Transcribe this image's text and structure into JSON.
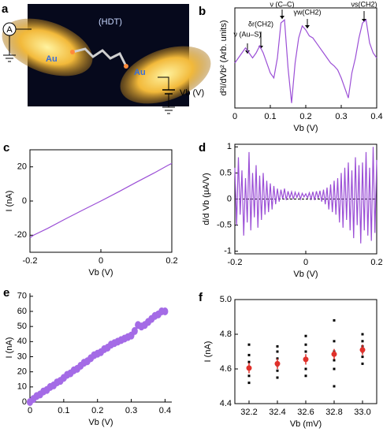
{
  "schematic": {
    "label": "a",
    "meter": "A",
    "left_electrode": "Au",
    "molecule": "(HDT)",
    "right_electrode": "Au",
    "bias": "Vb (V)"
  },
  "chart_data": [
    {
      "type": "line",
      "label": "b",
      "x_label": "Vb (V)",
      "y_label": "d²I/dVb² (Arb. units)",
      "color": "#9b4fd6",
      "xlim": [
        0,
        0.4
      ],
      "xticks": [
        0,
        0.1,
        0.2,
        0.3,
        0.4
      ],
      "ylim": [
        0,
        1
      ],
      "annotations": [
        "ν (Au–S)",
        "δr(CH2)",
        "ν (C–C)",
        "γw(CH2)",
        "νs(CH2)"
      ],
      "x": [
        0,
        0.01,
        0.02,
        0.03,
        0.04,
        0.05,
        0.06,
        0.07,
        0.08,
        0.09,
        0.1,
        0.11,
        0.12,
        0.13,
        0.14,
        0.15,
        0.16,
        0.17,
        0.18,
        0.19,
        0.2,
        0.21,
        0.22,
        0.23,
        0.24,
        0.25,
        0.26,
        0.27,
        0.28,
        0.29,
        0.3,
        0.31,
        0.32,
        0.33,
        0.34,
        0.35,
        0.36,
        0.37,
        0.38,
        0.39,
        0.4
      ],
      "values": [
        0.45,
        0.5,
        0.55,
        0.6,
        0.55,
        0.5,
        0.55,
        0.62,
        0.55,
        0.45,
        0.35,
        0.3,
        0.5,
        0.85,
        0.88,
        0.4,
        0.05,
        0.45,
        0.7,
        0.82,
        0.78,
        0.72,
        0.7,
        0.65,
        0.6,
        0.55,
        0.5,
        0.45,
        0.42,
        0.38,
        0.3,
        0.2,
        0.1,
        0.35,
        0.5,
        0.7,
        0.85,
        0.88,
        0.65,
        0.55,
        0.5
      ]
    },
    {
      "type": "line",
      "label": "c",
      "x_label": "Vb (V)",
      "y_label": "I (nA)",
      "color": "#9b4fd6",
      "xlim": [
        -0.2,
        0.2
      ],
      "xticks": [
        -0.2,
        0,
        0.2
      ],
      "ylim": [
        -30,
        30
      ],
      "yticks": [
        -20,
        0,
        20
      ],
      "x": [
        -0.2,
        -0.19,
        -0.15,
        -0.1,
        -0.05,
        0,
        0.05,
        0.1,
        0.15,
        0.19,
        0.2
      ],
      "values": [
        -21.5,
        -20,
        -16,
        -10.5,
        -5.2,
        0,
        5.4,
        11,
        16.4,
        21,
        22
      ]
    },
    {
      "type": "line",
      "label": "d",
      "x_label": "Vb (V)",
      "y_label": "d/d Vb (µA/V)",
      "color": "#9b4fd6",
      "zero_line": true,
      "xlim": [
        -0.2,
        0.2
      ],
      "xticks": [
        -0.2,
        0,
        0.2
      ],
      "ylim": [
        -1.05,
        1.05
      ],
      "yticks": [
        -1,
        -0.5,
        0,
        0.5,
        1
      ],
      "x": [
        -0.2,
        -0.195,
        -0.19,
        -0.185,
        -0.18,
        -0.175,
        -0.17,
        -0.165,
        -0.16,
        -0.155,
        -0.15,
        -0.145,
        -0.14,
        -0.135,
        -0.13,
        -0.125,
        -0.12,
        -0.115,
        -0.11,
        -0.105,
        -0.1,
        -0.095,
        -0.09,
        -0.085,
        -0.08,
        -0.075,
        -0.07,
        -0.065,
        -0.06,
        -0.055,
        -0.05,
        -0.045,
        -0.04,
        -0.035,
        -0.03,
        -0.025,
        -0.02,
        -0.015,
        -0.01,
        -0.005,
        0,
        0.005,
        0.01,
        0.015,
        0.02,
        0.025,
        0.03,
        0.035,
        0.04,
        0.045,
        0.05,
        0.055,
        0.06,
        0.065,
        0.07,
        0.075,
        0.08,
        0.085,
        0.09,
        0.095,
        0.1,
        0.105,
        0.11,
        0.115,
        0.12,
        0.125,
        0.13,
        0.135,
        0.14,
        0.145,
        0.15,
        0.155,
        0.16,
        0.165,
        0.17,
        0.175,
        0.18,
        0.185,
        0.19,
        0.195,
        0.2
      ],
      "values": [
        0.6,
        -0.5,
        0.8,
        -0.3,
        0.55,
        -0.7,
        0.4,
        -0.45,
        0.9,
        -0.6,
        0.5,
        -0.35,
        0.65,
        -0.55,
        0.45,
        -0.4,
        0.5,
        -0.3,
        0.35,
        -0.25,
        0.3,
        -0.2,
        0.25,
        -0.1,
        0.2,
        -0.05,
        0.18,
        0.0,
        0.2,
        -0.02,
        0.15,
        0.02,
        0.14,
        0.0,
        0.13,
        0.03,
        0.12,
        0.0,
        0.11,
        0.04,
        0.1,
        0.02,
        0.12,
        0.0,
        0.14,
        -0.02,
        0.15,
        0.01,
        0.16,
        -0.05,
        0.18,
        -0.1,
        0.22,
        -0.2,
        0.28,
        -0.25,
        0.35,
        -0.3,
        0.4,
        -0.45,
        0.5,
        -0.55,
        0.6,
        -0.4,
        0.7,
        -0.6,
        0.55,
        -0.75,
        0.8,
        -0.5,
        0.65,
        -0.85,
        0.7,
        -0.6,
        0.9,
        -0.7,
        0.6,
        -0.8,
        1.0,
        -0.65,
        0.75
      ]
    },
    {
      "type": "scatter",
      "label": "e",
      "x_label": "Vb (V)",
      "y_label": "I (nA)",
      "color": "#a46be6",
      "xlim": [
        0,
        0.42
      ],
      "xticks": [
        0,
        0.1,
        0.2,
        0.3,
        0.4
      ],
      "ylim": [
        0,
        72
      ],
      "yticks": [
        0,
        10,
        20,
        30,
        40,
        50,
        60,
        70
      ],
      "x": [
        0,
        0.01,
        0.02,
        0.03,
        0.04,
        0.05,
        0.06,
        0.07,
        0.08,
        0.09,
        0.1,
        0.11,
        0.12,
        0.13,
        0.14,
        0.15,
        0.16,
        0.17,
        0.18,
        0.19,
        0.2,
        0.21,
        0.22,
        0.23,
        0.24,
        0.25,
        0.26,
        0.27,
        0.28,
        0.29,
        0.3,
        0.31,
        0.32,
        0.33,
        0.34,
        0.35,
        0.36,
        0.37,
        0.38,
        0.39,
        0.4
      ],
      "values": [
        0,
        2,
        4,
        5,
        7,
        8,
        10,
        11,
        13,
        14,
        16,
        18,
        19,
        21,
        22,
        24,
        26,
        27,
        29,
        31,
        32,
        33,
        35,
        36,
        38,
        39,
        40,
        41,
        42,
        43,
        44,
        47,
        51,
        50,
        51,
        53,
        55,
        57,
        58,
        60,
        60
      ]
    },
    {
      "type": "dotplot",
      "label": "f",
      "x_label": "Vb (mV)",
      "y_label": "I (nA)",
      "color": "#000000",
      "xlim": [
        32.1,
        33.1
      ],
      "xticks": [
        32.2,
        32.4,
        32.6,
        32.8,
        {
          "value": 33,
          "label": "33.0"
        }
      ],
      "ylim": [
        4.4,
        5
      ],
      "yticks": [
        4.4,
        4.6,
        4.8,
        {
          "value": 5,
          "label": "5.0"
        }
      ],
      "x": [
        32.2,
        32.2,
        32.2,
        32.2,
        32.2,
        32.2,
        32.4,
        32.4,
        32.4,
        32.4,
        32.4,
        32.4,
        32.6,
        32.6,
        32.6,
        32.6,
        32.6,
        32.6,
        32.8,
        32.8,
        32.8,
        32.8,
        32.8,
        32.8,
        33,
        33,
        33,
        33,
        33,
        33
      ],
      "values": [
        4.52,
        4.56,
        4.6,
        4.64,
        4.68,
        4.74,
        4.55,
        4.59,
        4.62,
        4.66,
        4.7,
        4.73,
        4.56,
        4.6,
        4.65,
        4.7,
        4.74,
        4.79,
        4.5,
        4.6,
        4.65,
        4.7,
        4.76,
        4.88,
        4.63,
        4.67,
        4.7,
        4.73,
        4.76,
        4.8
      ],
      "means": {
        "color": "#e0302a",
        "x": [
          32.2,
          32.4,
          32.6,
          32.8,
          33
        ],
        "values": [
          4.605,
          4.63,
          4.655,
          4.685,
          4.71
        ],
        "errors": [
          0.03,
          0.03,
          0.03,
          0.03,
          0.03
        ]
      }
    }
  ]
}
